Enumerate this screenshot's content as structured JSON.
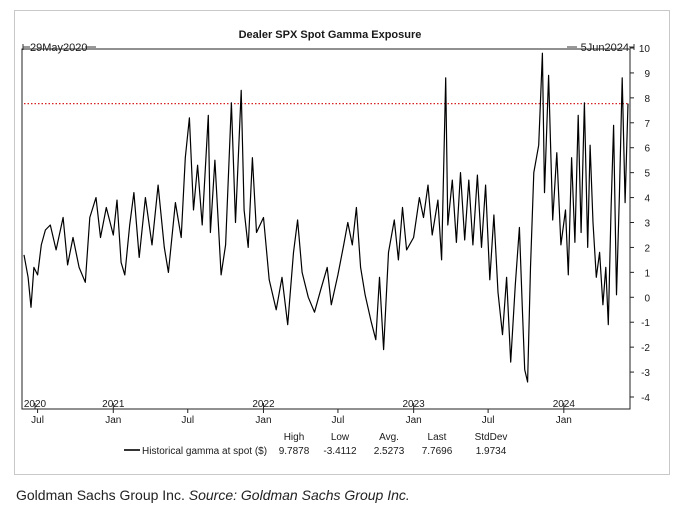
{
  "chart_data": {
    "type": "line",
    "title": "Dealer SPX Spot Gamma Exposure",
    "start_label": "29May2020",
    "end_label": "5Jun2024",
    "x_range": [
      "2020-05-29",
      "2024-06-05"
    ],
    "ylim": [
      -4,
      10
    ],
    "y_ticks": [
      10,
      9,
      8,
      7,
      6,
      5,
      4,
      3,
      2,
      1,
      0,
      -1,
      -2,
      -3,
      -4
    ],
    "y_axis_side": "right",
    "grid": false,
    "reference_line": {
      "value": 7.7696,
      "style": "dotted",
      "color": "#d62020"
    },
    "x_ticks_month": [
      {
        "date": "2020-07-01",
        "label": "Jul"
      },
      {
        "date": "2021-01-01",
        "label": "Jan"
      },
      {
        "date": "2021-07-01",
        "label": "Jul"
      },
      {
        "date": "2022-01-01",
        "label": "Jan"
      },
      {
        "date": "2022-07-01",
        "label": "Jul"
      },
      {
        "date": "2023-01-01",
        "label": "Jan"
      },
      {
        "date": "2023-07-01",
        "label": "Jul"
      },
      {
        "date": "2024-01-01",
        "label": "Jan"
      }
    ],
    "x_ticks_year": [
      {
        "date": "2020-06-01",
        "label": "2020"
      },
      {
        "date": "2021-01-01",
        "label": "2021"
      },
      {
        "date": "2022-01-01",
        "label": "2022"
      },
      {
        "date": "2023-01-01",
        "label": "2023"
      },
      {
        "date": "2024-01-01",
        "label": "2024"
      }
    ],
    "stats_headers": [
      "High",
      "Low",
      "Avg.",
      "Last",
      "StdDev"
    ],
    "series": [
      {
        "name": "Historical gamma at spot ($)",
        "color": "#000000",
        "stats": [
          "9.7878",
          "-3.4112",
          "2.5273",
          "7.7696",
          "1.9734"
        ],
        "points": [
          [
            "2020-05-29",
            1.7
          ],
          [
            "2020-06-08",
            0.8
          ],
          [
            "2020-06-15",
            -0.4
          ],
          [
            "2020-06-22",
            1.2
          ],
          [
            "2020-07-01",
            0.9
          ],
          [
            "2020-07-10",
            2.1
          ],
          [
            "2020-07-20",
            2.7
          ],
          [
            "2020-08-01",
            2.9
          ],
          [
            "2020-08-15",
            1.9
          ],
          [
            "2020-09-01",
            3.2
          ],
          [
            "2020-09-12",
            1.3
          ],
          [
            "2020-09-25",
            2.4
          ],
          [
            "2020-10-10",
            1.2
          ],
          [
            "2020-10-25",
            0.6
          ],
          [
            "2020-11-05",
            3.2
          ],
          [
            "2020-11-20",
            4.0
          ],
          [
            "2020-12-01",
            2.4
          ],
          [
            "2020-12-15",
            3.6
          ],
          [
            "2021-01-01",
            2.5
          ],
          [
            "2021-01-10",
            3.9
          ],
          [
            "2021-01-20",
            1.4
          ],
          [
            "2021-01-29",
            0.9
          ],
          [
            "2021-02-10",
            2.9
          ],
          [
            "2021-02-20",
            4.2
          ],
          [
            "2021-03-05",
            1.6
          ],
          [
            "2021-03-20",
            4.0
          ],
          [
            "2021-04-05",
            2.1
          ],
          [
            "2021-04-20",
            4.5
          ],
          [
            "2021-05-05",
            2.0
          ],
          [
            "2021-05-15",
            1.0
          ],
          [
            "2021-06-01",
            3.8
          ],
          [
            "2021-06-15",
            2.4
          ],
          [
            "2021-06-25",
            5.6
          ],
          [
            "2021-07-05",
            7.2
          ],
          [
            "2021-07-15",
            3.5
          ],
          [
            "2021-07-25",
            5.3
          ],
          [
            "2021-08-05",
            2.9
          ],
          [
            "2021-08-20",
            7.3
          ],
          [
            "2021-08-25",
            2.6
          ],
          [
            "2021-09-05",
            5.5
          ],
          [
            "2021-09-20",
            0.9
          ],
          [
            "2021-10-01",
            2.1
          ],
          [
            "2021-10-15",
            7.8
          ],
          [
            "2021-10-25",
            3.0
          ],
          [
            "2021-11-08",
            8.3
          ],
          [
            "2021-11-15",
            3.5
          ],
          [
            "2021-11-25",
            2.0
          ],
          [
            "2021-12-05",
            5.6
          ],
          [
            "2021-12-15",
            2.6
          ],
          [
            "2022-01-01",
            3.2
          ],
          [
            "2022-01-15",
            0.7
          ],
          [
            "2022-02-01",
            -0.5
          ],
          [
            "2022-02-15",
            0.8
          ],
          [
            "2022-03-01",
            -1.1
          ],
          [
            "2022-03-15",
            1.8
          ],
          [
            "2022-03-25",
            3.1
          ],
          [
            "2022-04-05",
            1.0
          ],
          [
            "2022-04-20",
            0.0
          ],
          [
            "2022-05-05",
            -0.6
          ],
          [
            "2022-05-20",
            0.3
          ],
          [
            "2022-06-05",
            1.2
          ],
          [
            "2022-06-15",
            -0.3
          ],
          [
            "2022-07-01",
            0.9
          ],
          [
            "2022-07-15",
            2.1
          ],
          [
            "2022-07-25",
            3.0
          ],
          [
            "2022-08-05",
            2.1
          ],
          [
            "2022-08-15",
            3.6
          ],
          [
            "2022-08-25",
            1.2
          ],
          [
            "2022-09-05",
            0.1
          ],
          [
            "2022-09-20",
            -1.0
          ],
          [
            "2022-10-01",
            -1.7
          ],
          [
            "2022-10-10",
            0.8
          ],
          [
            "2022-10-20",
            -2.1
          ],
          [
            "2022-11-01",
            1.8
          ],
          [
            "2022-11-15",
            3.1
          ],
          [
            "2022-11-25",
            1.5
          ],
          [
            "2022-12-05",
            3.6
          ],
          [
            "2022-12-15",
            1.9
          ],
          [
            "2023-01-01",
            2.4
          ],
          [
            "2023-01-15",
            4.0
          ],
          [
            "2023-01-25",
            3.2
          ],
          [
            "2023-02-05",
            4.5
          ],
          [
            "2023-02-15",
            2.5
          ],
          [
            "2023-03-01",
            3.9
          ],
          [
            "2023-03-10",
            1.5
          ],
          [
            "2023-03-20",
            8.8
          ],
          [
            "2023-03-25",
            2.9
          ],
          [
            "2023-04-05",
            4.7
          ],
          [
            "2023-04-15",
            2.2
          ],
          [
            "2023-04-25",
            5.0
          ],
          [
            "2023-05-05",
            2.3
          ],
          [
            "2023-05-15",
            4.7
          ],
          [
            "2023-05-25",
            2.1
          ],
          [
            "2023-06-05",
            4.9
          ],
          [
            "2023-06-15",
            2.0
          ],
          [
            "2023-06-25",
            4.5
          ],
          [
            "2023-07-05",
            0.7
          ],
          [
            "2023-07-15",
            3.3
          ],
          [
            "2023-07-25",
            0.2
          ],
          [
            "2023-08-05",
            -1.5
          ],
          [
            "2023-08-15",
            0.8
          ],
          [
            "2023-08-25",
            -2.6
          ],
          [
            "2023-09-05",
            0.5
          ],
          [
            "2023-09-15",
            2.8
          ],
          [
            "2023-09-22",
            -0.4
          ],
          [
            "2023-09-28",
            -2.9
          ],
          [
            "2023-10-05",
            -3.4
          ],
          [
            "2023-10-12",
            1.2
          ],
          [
            "2023-10-20",
            5.0
          ],
          [
            "2023-11-01",
            6.1
          ],
          [
            "2023-11-10",
            9.79
          ],
          [
            "2023-11-15",
            4.2
          ],
          [
            "2023-11-25",
            8.9
          ],
          [
            "2023-12-05",
            3.1
          ],
          [
            "2023-12-15",
            5.8
          ],
          [
            "2023-12-25",
            2.1
          ],
          [
            "2024-01-05",
            3.5
          ],
          [
            "2024-01-12",
            0.9
          ],
          [
            "2024-01-20",
            5.6
          ],
          [
            "2024-01-28",
            2.2
          ],
          [
            "2024-02-05",
            7.3
          ],
          [
            "2024-02-12",
            2.6
          ],
          [
            "2024-02-20",
            7.8
          ],
          [
            "2024-02-28",
            2.0
          ],
          [
            "2024-03-05",
            6.1
          ],
          [
            "2024-03-12",
            3.0
          ],
          [
            "2024-03-20",
            0.8
          ],
          [
            "2024-03-28",
            1.8
          ],
          [
            "2024-04-05",
            -0.3
          ],
          [
            "2024-04-12",
            1.2
          ],
          [
            "2024-04-18",
            -1.1
          ],
          [
            "2024-04-25",
            3.6
          ],
          [
            "2024-05-01",
            6.9
          ],
          [
            "2024-05-08",
            0.1
          ],
          [
            "2024-05-15",
            4.1
          ],
          [
            "2024-05-22",
            8.8
          ],
          [
            "2024-05-29",
            3.8
          ],
          [
            "2024-06-05",
            7.77
          ]
        ]
      }
    ]
  },
  "footer": {
    "company": "Goldman Sachs Group Inc.",
    "source": "Source: Goldman Sachs Group Inc."
  }
}
